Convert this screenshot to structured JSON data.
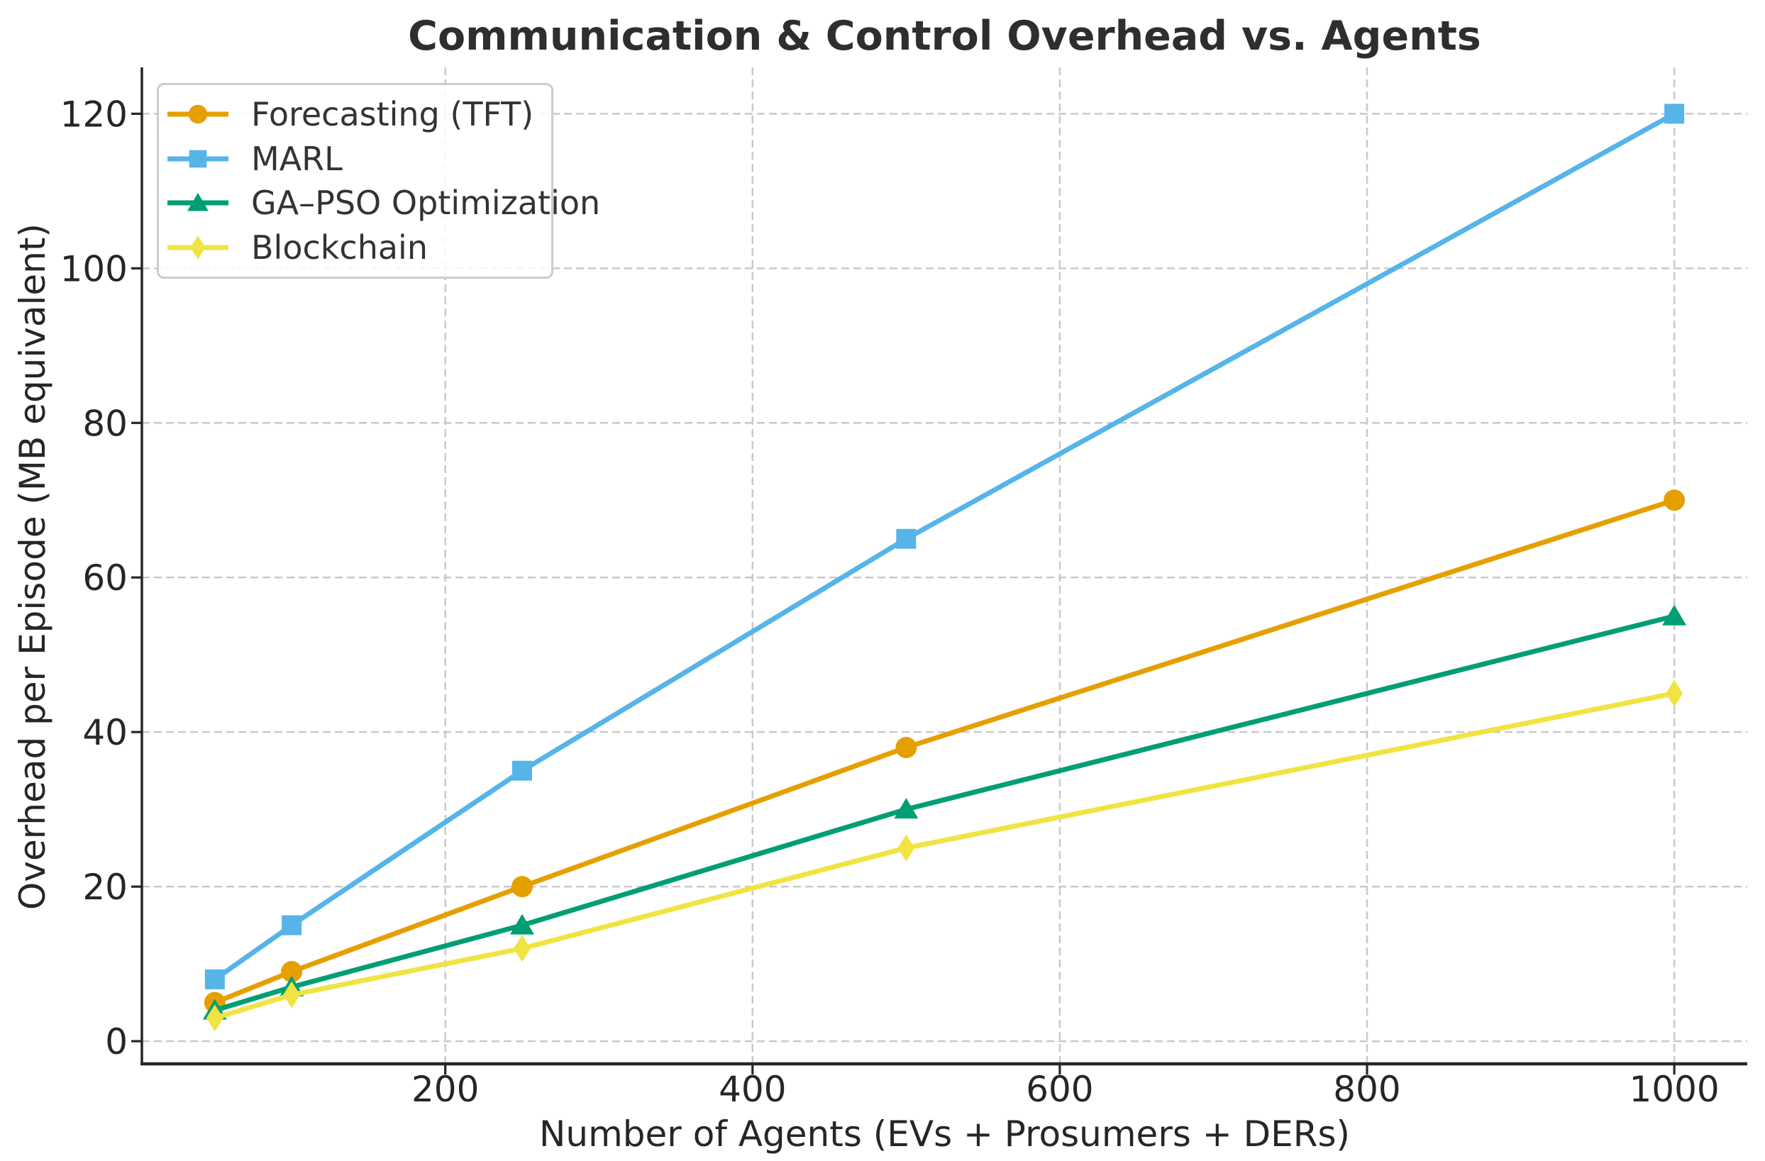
{
  "chart_data": {
    "type": "line",
    "title": "Communication & Control Overhead vs. Agents",
    "xlabel": "Number of Agents (EVs + Prosumers + DERs)",
    "ylabel": "Overhead per Episode (MB equivalent)",
    "x": [
      50,
      100,
      250,
      500,
      1000
    ],
    "series": [
      {
        "name": "Forecasting (TFT)",
        "color": "#E69F00",
        "marker": "circle",
        "values": [
          5,
          9,
          20,
          38,
          70
        ]
      },
      {
        "name": "MARL",
        "color": "#56B4E9",
        "marker": "square",
        "values": [
          8,
          15,
          35,
          65,
          120
        ]
      },
      {
        "name": "GA–PSO Optimization",
        "color": "#009E73",
        "marker": "triangle",
        "values": [
          4,
          7,
          15,
          30,
          55
        ]
      },
      {
        "name": "Blockchain",
        "color": "#F0E442",
        "marker": "diamond",
        "values": [
          3,
          6,
          12,
          25,
          45
        ]
      }
    ],
    "xticks": [
      200,
      400,
      600,
      800,
      1000
    ],
    "yticks": [
      0,
      20,
      40,
      60,
      80,
      100,
      120
    ],
    "xlim": [
      2.5,
      1047.5
    ],
    "ylim": [
      -2.93,
      126
    ],
    "grid": true,
    "grid_style": "dashed",
    "legend_position": "upper left",
    "colors": {
      "grid": "#c9c9c9",
      "spine": "#262626",
      "tick_label": "#262626",
      "title": "#2e2e2e",
      "legend_border": "#cccccc",
      "legend_text": "#333333",
      "background": "#ffffff"
    }
  }
}
